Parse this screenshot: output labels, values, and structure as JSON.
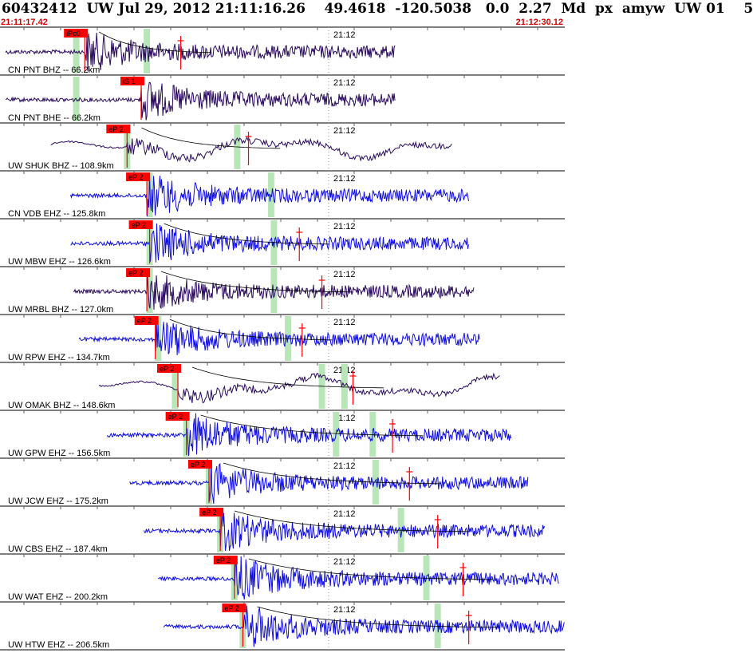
{
  "header": {
    "title": "60432412  UW Jul 29, 2012 21:11:16.26    49.4618  -120.5038   0.0  2.27  Md  px  amyw  UW 01    5",
    "start_time": "21:11:17.42",
    "end_time": "21:12:30.12"
  },
  "time_mark_label": "21:12",
  "colors": {
    "broadband": "#2a0a5e",
    "shortperiod": "#1010e0",
    "pick": "#ff0000",
    "window": "#b8e6b8",
    "curve": "#000000",
    "gridline": "#000000",
    "tick": "#606060"
  },
  "traces": [
    {
      "label": "CN PNT BHZ -- 66.2km",
      "pick": "iPc0",
      "color": "broadband",
      "start": 0.01,
      "end": 0.7,
      "p": 0.15,
      "amp": 0.9,
      "windows": [
        0.135,
        0.26
      ],
      "marker": 0.32,
      "curve": true,
      "red2": 0.32
    },
    {
      "label": "CN PNT BHE -- 66.2km",
      "pick": "iS 1",
      "color": "broadband",
      "start": 0.01,
      "end": 0.7,
      "p": 0.25,
      "amp": 0.9,
      "windows": [
        0.135
      ],
      "marker": null,
      "curve": false,
      "red2": null
    },
    {
      "label": "UW SHUK BHZ -- 108.9km",
      "pick": "eP 2",
      "color": "broadband",
      "start": 0.09,
      "end": 0.8,
      "p": 0.225,
      "amp": 0.8,
      "windows": [
        0.225,
        0.42
      ],
      "marker": 0.44,
      "curve": true,
      "red2": 0.44,
      "slow": true
    },
    {
      "label": "CN VDB EHZ -- 125.8km",
      "pick": "eP 2",
      "color": "shortperiod",
      "start": 0.125,
      "end": 0.83,
      "p": 0.26,
      "amp": 1.0,
      "windows": [
        0.265,
        0.48
      ],
      "marker": null,
      "curve": false,
      "red2": null
    },
    {
      "label": "UW MBW EHZ -- 126.6km",
      "pick": "eP 2",
      "color": "shortperiod",
      "start": 0.125,
      "end": 0.83,
      "p": 0.265,
      "amp": 0.9,
      "windows": [
        0.265,
        0.485
      ],
      "marker": 0.53,
      "curve": true,
      "red2": 0.53
    },
    {
      "label": "UW MRBL BHZ -- 127.0km",
      "pick": "eP 2",
      "color": "broadband",
      "start": 0.13,
      "end": 0.84,
      "p": 0.26,
      "amp": 0.8,
      "windows": [
        0.265,
        0.485
      ],
      "marker": 0.57,
      "curve": true,
      "red2": 0.57
    },
    {
      "label": "UW RPW EHZ -- 134.7km",
      "pick": "eP 2",
      "color": "shortperiod",
      "start": 0.14,
      "end": 0.85,
      "p": 0.275,
      "amp": 0.9,
      "windows": [
        0.28,
        0.51
      ],
      "marker": 0.535,
      "curve": true,
      "red2": 0.535
    },
    {
      "label": "UW OMAK BHZ -- 148.6km",
      "pick": "eP 2",
      "color": "broadband",
      "start": 0.175,
      "end": 0.885,
      "p": 0.315,
      "amp": 0.8,
      "windows": [
        0.31,
        0.57,
        0.61
      ],
      "marker": 0.625,
      "curve": true,
      "red2": 0.625,
      "slow": true
    },
    {
      "label": "UW GPW EHZ -- 156.5km",
      "pick": "eP 2",
      "color": "shortperiod",
      "start": 0.19,
      "end": 0.905,
      "p": 0.33,
      "amp": 1.0,
      "windows": [
        0.33,
        0.595,
        0.66
      ],
      "marker": 0.695,
      "curve": true,
      "red2": 0.695
    },
    {
      "label": "UW JCW EHZ -- 175.2km",
      "pick": "eP 2",
      "color": "shortperiod",
      "start": 0.23,
      "end": 0.935,
      "p": 0.37,
      "amp": 0.9,
      "windows": [
        0.37,
        0.665
      ],
      "marker": 0.725,
      "curve": true,
      "red2": 0.725
    },
    {
      "label": "UW CBS EHZ -- 187.4km",
      "pick": "eP 2",
      "color": "shortperiod",
      "start": 0.255,
      "end": 0.965,
      "p": 0.39,
      "amp": 0.9,
      "windows": [
        0.39,
        0.71
      ],
      "marker": 0.775,
      "curve": true,
      "red2": 0.775
    },
    {
      "label": "UW WAT EHZ -- 200.2km",
      "pick": "eP 2",
      "color": "shortperiod",
      "start": 0.28,
      "end": 0.99,
      "p": 0.415,
      "amp": 1.0,
      "windows": [
        0.415,
        0.755
      ],
      "marker": 0.82,
      "curve": true,
      "red2": 0.82
    },
    {
      "label": "UW HTW EHZ -- 206.5km",
      "pick": "eP 2",
      "color": "shortperiod",
      "start": 0.29,
      "end": 1.0,
      "p": 0.43,
      "amp": 1.0,
      "windows": [
        0.43,
        0.775
      ],
      "marker": 0.83,
      "curve": true,
      "red2": 0.83
    }
  ]
}
